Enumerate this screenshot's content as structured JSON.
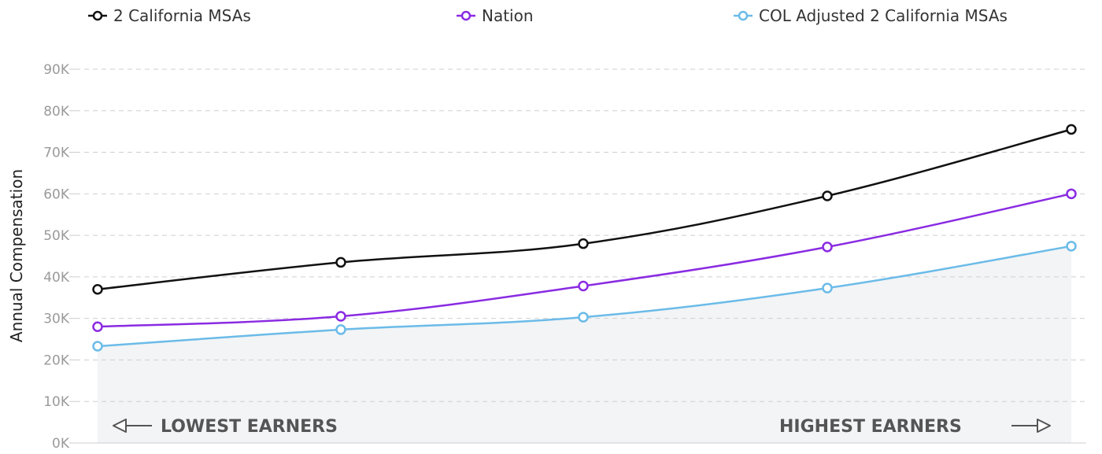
{
  "chart_data": {
    "type": "line",
    "title": "",
    "xlabel": "",
    "ylabel": "Annual Compensation",
    "x": [
      1,
      2,
      3,
      4,
      5
    ],
    "ylim": [
      0,
      90000
    ],
    "yticks": [
      0,
      10000,
      20000,
      30000,
      40000,
      50000,
      60000,
      70000,
      80000,
      90000
    ],
    "ytick_labels": [
      "0K",
      "10K",
      "20K",
      "30K",
      "40K",
      "50K",
      "60K",
      "70K",
      "80K",
      "90K"
    ],
    "grid": true,
    "legend_position": "top",
    "series": [
      {
        "name": "2 California MSAs",
        "color": "#111111",
        "values": [
          37000,
          43500,
          48000,
          59500,
          75500
        ]
      },
      {
        "name": "Nation",
        "color": "#8a2be2",
        "values": [
          28000,
          30500,
          37800,
          47200,
          60000
        ]
      },
      {
        "name": "COL Adjusted 2 California MSAs",
        "color": "#6bbbe8",
        "values": [
          23300,
          27300,
          30300,
          37300,
          47400
        ]
      }
    ],
    "filled_series": "COL Adjusted 2 California MSAs",
    "fill_color": "#f2f4f6",
    "annotations": {
      "lowest": "LOWEST EARNERS",
      "highest": "HIGHEST EARNERS"
    }
  }
}
